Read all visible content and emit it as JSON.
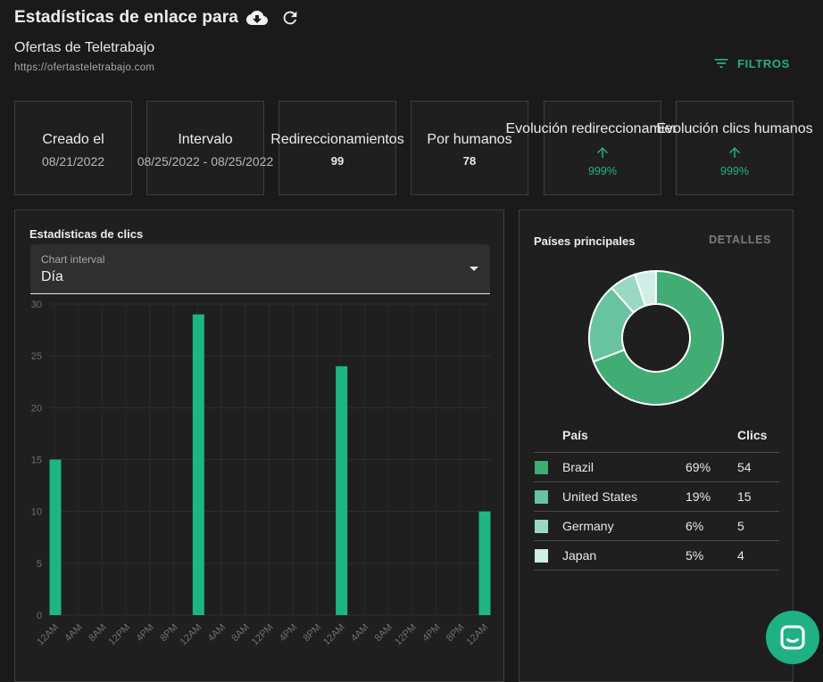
{
  "header": {
    "title": "Estadísticas de enlace para",
    "download_icon": "cloud-download-icon",
    "refresh_icon": "refresh-icon"
  },
  "link": {
    "name": "Ofertas de Teletrabajo",
    "url": "https://ofertasteletrabajo.com"
  },
  "filters": {
    "label": "FILTROS",
    "icon": "filter-list-icon"
  },
  "cards": [
    {
      "label": "Creado el",
      "value": "08/21/2022"
    },
    {
      "label": "Intervalo",
      "value": "08/25/2022 - 08/25/2022"
    },
    {
      "label": "Redireccionamientos",
      "value": "99"
    },
    {
      "label": "Por humanos",
      "value": "78"
    },
    {
      "label": "Evolución redireccionamientos",
      "value": "999%",
      "icon": "arrow-up-icon"
    },
    {
      "label": "Evolución clics humanos",
      "value": "999%",
      "icon": "arrow-up-icon"
    }
  ],
  "clicks_panel": {
    "title": "Estadísticas de clics",
    "select_label": "Chart interval",
    "select_value": "Día"
  },
  "chart_data": {
    "type": "bar",
    "categories": [
      "12AM",
      "4AM",
      "8AM",
      "12PM",
      "4PM",
      "8PM",
      "12AM",
      "4AM",
      "8AM",
      "12PM",
      "4PM",
      "8PM",
      "12AM",
      "4AM",
      "8AM",
      "12PM",
      "4PM",
      "8PM",
      "12AM"
    ],
    "values": [
      15,
      0,
      0,
      0,
      0,
      0,
      29,
      0,
      0,
      0,
      0,
      0,
      24,
      0,
      0,
      0,
      0,
      0,
      10
    ],
    "yticks": [
      0,
      5,
      10,
      15,
      20,
      25,
      30
    ],
    "ylim": [
      0,
      30
    ],
    "grid": true,
    "color": "#1db584"
  },
  "countries_panel": {
    "title": "Países principales",
    "details_label": "DETALLES",
    "columns": [
      "País",
      "Clics"
    ],
    "rows": [
      {
        "country": "Brazil",
        "pct": "69%",
        "clicks": "54",
        "color": "#41ad74"
      },
      {
        "country": "United States",
        "pct": "19%",
        "clicks": "15",
        "color": "#67c3a0"
      },
      {
        "country": "Germany",
        "pct": "6%",
        "clicks": "5",
        "color": "#9ad8c4"
      },
      {
        "country": "Japan",
        "pct": "5%",
        "clicks": "4",
        "color": "#cfeee6"
      }
    ]
  },
  "chat": {
    "icon": "chat-icon"
  }
}
